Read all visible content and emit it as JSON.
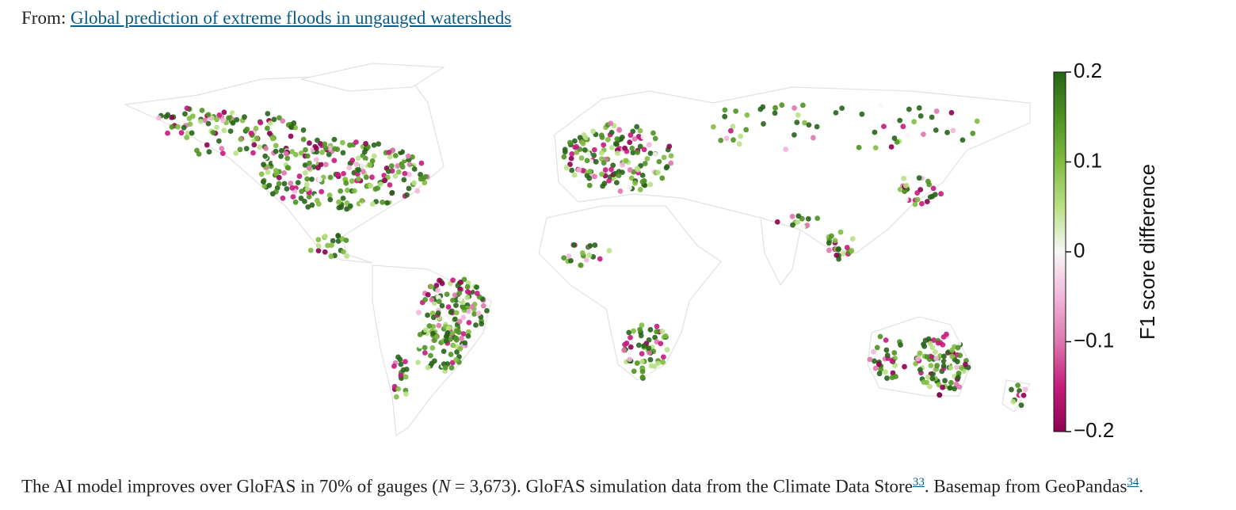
{
  "header": {
    "prefix": "From:",
    "link": "Global prediction of extreme floods in ungauged watersheds"
  },
  "colorbar": {
    "label": "F1 score difference",
    "ylim": [
      -0.2,
      0.2
    ],
    "yticks": [
      {
        "value": 0.2,
        "label": "0.2"
      },
      {
        "value": 0.1,
        "label": "0.1"
      },
      0,
      {
        "value": -0.1,
        "label": "−0.1"
      },
      {
        "value": -0.2,
        "label": "−0.2"
      }
    ],
    "colors": [
      "#8e0152",
      "#c51b7d",
      "#de77ae",
      "#f1b6da",
      "#f7f7f7",
      "#b8e186",
      "#7fbc41",
      "#4d9221",
      "#276419"
    ]
  },
  "caption": {
    "text1": "The AI model improves over GloFAS in 70% of gauges (",
    "italic": "N",
    "text2": " = 3,673). GloFAS simulation data from the Climate Data Store",
    "ref1": "33",
    "text3": ". Basemap from GeoPandas",
    "ref2": "34",
    "text4": "."
  }
}
